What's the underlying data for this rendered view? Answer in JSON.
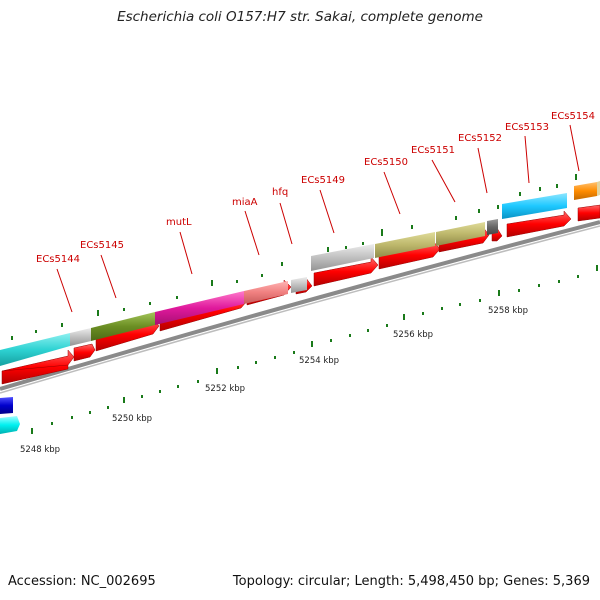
{
  "title": "Escherichia coli O157:H7 str. Sakai, complete genome",
  "accession": "Accession: NC_002695",
  "summary": "Topology: circular; Length: 5,498,450 bp; Genes: 5,369",
  "scale_labels": [
    "5248 kbp",
    "5250 kbp",
    "5252 kbp",
    "5254 kbp",
    "5256 kbp",
    "5258 kbp"
  ],
  "gene_labels": [
    "ECs5144",
    "ECs5145",
    "mutL",
    "miaA",
    "hfq",
    "ECs5149",
    "ECs5150",
    "ECs5151",
    "ECs5152",
    "ECs5153",
    "ECs5154"
  ],
  "colors": {
    "cds": "#ff0000",
    "backbone": "#888888",
    "tick": "#1a7a1a",
    "label": "#cc0000",
    "gene_cyan": "#2ed3d3",
    "gene_olive": "#6b8e23",
    "gene_magenta": "#e0199c",
    "gene_salmon": "#f08080",
    "gene_silver": "#c0c0c0",
    "gene_khaki": "#bdb76b",
    "gene_blue": "#1ec8ff",
    "gene_orange": "#ff8c00",
    "gene_darkgray": "#666666",
    "gene_navy": "#0000cc"
  }
}
